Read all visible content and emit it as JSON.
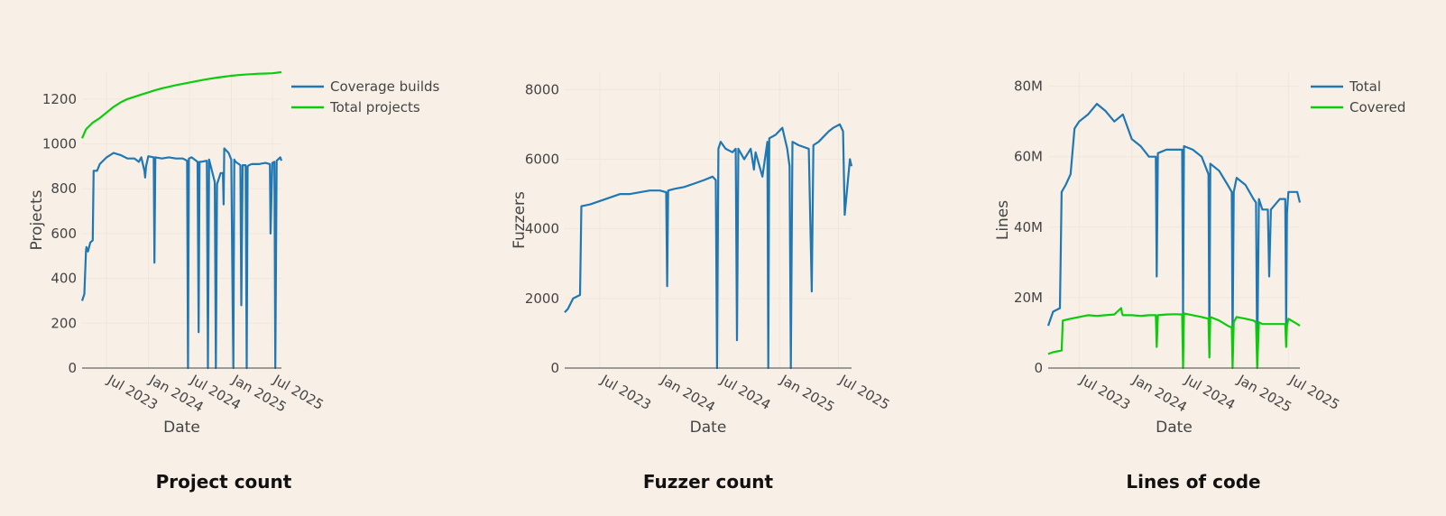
{
  "chart_data": [
    {
      "type": "line",
      "title": "Project count",
      "xlabel": "Date",
      "ylabel": "Projects",
      "x_range": [
        "2023-03-15",
        "2025-08-10"
      ],
      "ylim": [
        0,
        1320
      ],
      "yticks": [
        0,
        200,
        400,
        600,
        800,
        1000,
        1200
      ],
      "xticks": [
        "2023-07-01",
        "2024-01-01",
        "2024-07-01",
        "2025-01-01",
        "2025-07-01"
      ],
      "xtick_labels": [
        "Jul 2023",
        "Jan 2024",
        "Jul 2024",
        "Jan 2025",
        "Jul 2025"
      ],
      "grid": true,
      "legend": "right",
      "series": [
        {
          "name": "Coverage builds",
          "color": "#1f77b4",
          "x": [
            "2023-03-15",
            "2023-03-25",
            "2023-04-01",
            "2023-04-03",
            "2023-04-10",
            "2023-04-20",
            "2023-05-01",
            "2023-05-05",
            "2023-05-20",
            "2023-06-01",
            "2023-07-01",
            "2023-08-01",
            "2023-09-01",
            "2023-10-01",
            "2023-11-01",
            "2023-11-20",
            "2023-12-01",
            "2023-12-15",
            "2023-12-18",
            "2023-12-22",
            "2024-01-01",
            "2024-01-25",
            "2024-01-28",
            "2024-02-01",
            "2024-03-01",
            "2024-04-01",
            "2024-05-01",
            "2024-06-01",
            "2024-06-20",
            "2024-06-24",
            "2024-06-28",
            "2024-07-10",
            "2024-08-05",
            "2024-08-10",
            "2024-08-14",
            "2024-08-20",
            "2024-09-15",
            "2024-09-20",
            "2024-09-25",
            "2024-10-20",
            "2024-10-25",
            "2024-10-30",
            "2024-11-15",
            "2024-11-25",
            "2024-11-28",
            "2024-12-01",
            "2024-12-20",
            "2025-01-01",
            "2025-01-05",
            "2025-01-10",
            "2025-01-14",
            "2025-01-20",
            "2025-02-10",
            "2025-02-14",
            "2025-02-20",
            "2025-03-05",
            "2025-03-10",
            "2025-03-14",
            "2025-03-20",
            "2025-04-01",
            "2025-05-01",
            "2025-06-01",
            "2025-06-20",
            "2025-06-23",
            "2025-07-01",
            "2025-07-10",
            "2025-07-14",
            "2025-07-20",
            "2025-08-05",
            "2025-08-10"
          ],
          "values": [
            300,
            330,
            520,
            540,
            520,
            560,
            570,
            880,
            880,
            910,
            940,
            960,
            950,
            935,
            935,
            920,
            940,
            880,
            850,
            900,
            945,
            940,
            470,
            940,
            935,
            940,
            935,
            935,
            925,
            0,
            935,
            940,
            920,
            160,
            920,
            920,
            925,
            0,
            930,
            830,
            0,
            820,
            870,
            870,
            730,
            980,
            960,
            930,
            500,
            0,
            930,
            920,
            905,
            280,
            905,
            905,
            0,
            900,
            905,
            910,
            910,
            915,
            910,
            600,
            915,
            920,
            0,
            925,
            940,
            925
          ]
        },
        {
          "name": "Total projects",
          "color": "#0ccb0c",
          "x": [
            "2023-03-15",
            "2023-04-01",
            "2023-05-01",
            "2023-06-01",
            "2023-07-01",
            "2023-08-01",
            "2023-09-01",
            "2023-10-01",
            "2023-11-01",
            "2023-12-01",
            "2024-01-01",
            "2024-02-01",
            "2024-03-01",
            "2024-04-01",
            "2024-05-01",
            "2024-06-01",
            "2024-07-01",
            "2024-08-01",
            "2024-09-01",
            "2024-10-01",
            "2024-11-01",
            "2024-12-01",
            "2025-01-01",
            "2025-02-01",
            "2025-03-01",
            "2025-04-01",
            "2025-05-01",
            "2025-06-01",
            "2025-07-01",
            "2025-08-10"
          ],
          "values": [
            1025,
            1065,
            1095,
            1115,
            1140,
            1165,
            1185,
            1200,
            1210,
            1220,
            1230,
            1240,
            1248,
            1255,
            1262,
            1268,
            1274,
            1280,
            1286,
            1291,
            1296,
            1300,
            1304,
            1307,
            1309,
            1311,
            1313,
            1314,
            1315,
            1320
          ]
        }
      ]
    },
    {
      "type": "line",
      "title": "Fuzzer count",
      "xlabel": "Date",
      "ylabel": "Fuzzers",
      "x_range": [
        "2023-03-15",
        "2025-08-10"
      ],
      "ylim": [
        0,
        8500
      ],
      "yticks": [
        0,
        2000,
        4000,
        6000,
        8000
      ],
      "xticks": [
        "2023-07-01",
        "2024-01-01",
        "2024-07-01",
        "2025-01-01",
        "2025-07-01"
      ],
      "xtick_labels": [
        "Jul 2023",
        "Jan 2024",
        "Jul 2024",
        "Jan 2025",
        "Jul 2025"
      ],
      "grid": true,
      "legend": "none",
      "series": [
        {
          "name": "",
          "color": "#1f77b4",
          "x": [
            "2023-03-15",
            "2023-03-25",
            "2023-04-10",
            "2023-05-01",
            "2023-05-05",
            "2023-06-01",
            "2023-07-01",
            "2023-08-01",
            "2023-09-01",
            "2023-10-01",
            "2023-11-01",
            "2023-12-01",
            "2024-01-01",
            "2024-01-20",
            "2024-01-23",
            "2024-01-26",
            "2024-02-15",
            "2024-03-15",
            "2024-04-15",
            "2024-05-15",
            "2024-06-10",
            "2024-06-20",
            "2024-06-24",
            "2024-06-28",
            "2024-07-05",
            "2024-07-20",
            "2024-08-10",
            "2024-08-20",
            "2024-08-24",
            "2024-08-28",
            "2024-09-15",
            "2024-10-05",
            "2024-10-15",
            "2024-10-20",
            "2024-11-10",
            "2024-11-25",
            "2024-11-28",
            "2024-12-01",
            "2024-12-20",
            "2025-01-10",
            "2025-01-25",
            "2025-02-01",
            "2025-02-05",
            "2025-02-10",
            "2025-03-01",
            "2025-04-01",
            "2025-04-10",
            "2025-04-15",
            "2025-05-01",
            "2025-06-01",
            "2025-06-15",
            "2025-07-05",
            "2025-07-15",
            "2025-07-20",
            "2025-08-05",
            "2025-08-10"
          ],
          "values": [
            1600,
            1700,
            2000,
            2100,
            4650,
            4700,
            4800,
            4900,
            5000,
            5000,
            5050,
            5100,
            5100,
            5050,
            2350,
            5100,
            5150,
            5200,
            5300,
            5400,
            5500,
            5400,
            0,
            6300,
            6500,
            6300,
            6200,
            6300,
            800,
            6300,
            6000,
            6300,
            5700,
            6200,
            5500,
            6500,
            0,
            6600,
            6700,
            6900,
            6300,
            5800,
            0,
            6500,
            6400,
            6300,
            2200,
            6400,
            6500,
            6800,
            6900,
            7000,
            6800,
            4400,
            6000,
            5800
          ]
        }
      ]
    },
    {
      "type": "line",
      "title": "Lines of code",
      "xlabel": "Date",
      "ylabel": "Lines",
      "x_range": [
        "2023-03-15",
        "2025-08-10"
      ],
      "ylim": [
        0,
        84000000
      ],
      "yticks": [
        0,
        20000000,
        40000000,
        60000000,
        80000000
      ],
      "ytick_labels": [
        "0",
        "20M",
        "40M",
        "60M",
        "80M"
      ],
      "xticks": [
        "2023-07-01",
        "2024-01-01",
        "2024-07-01",
        "2025-01-01",
        "2025-07-01"
      ],
      "xtick_labels": [
        "Jul 2023",
        "Jan 2024",
        "Jul 2024",
        "Jan 2025",
        "Jul 2025"
      ],
      "grid": true,
      "legend": "top-right",
      "series": [
        {
          "name": "Total",
          "color": "#1f77b4",
          "x": [
            "2023-03-15",
            "2023-04-01",
            "2023-04-25",
            "2023-05-01",
            "2023-05-15",
            "2023-06-01",
            "2023-06-15",
            "2023-07-01",
            "2023-08-01",
            "2023-09-01",
            "2023-10-01",
            "2023-11-01",
            "2023-12-01",
            "2024-01-01",
            "2024-02-01",
            "2024-03-01",
            "2024-03-25",
            "2024-03-28",
            "2024-04-01",
            "2024-05-01",
            "2024-06-01",
            "2024-06-25",
            "2024-06-28",
            "2024-07-01",
            "2024-08-01",
            "2024-09-01",
            "2024-09-25",
            "2024-09-28",
            "2024-10-01",
            "2024-11-01",
            "2024-12-01",
            "2024-12-15",
            "2024-12-18",
            "2024-12-22",
            "2025-01-01",
            "2025-02-01",
            "2025-03-01",
            "2025-03-10",
            "2025-03-14",
            "2025-03-20",
            "2025-04-01",
            "2025-04-20",
            "2025-04-25",
            "2025-05-01",
            "2025-06-01",
            "2025-06-20",
            "2025-06-23",
            "2025-06-26",
            "2025-07-01",
            "2025-08-01",
            "2025-08-10"
          ],
          "values": [
            12000000,
            16000000,
            17000000,
            50000000,
            52000000,
            55000000,
            68000000,
            70000000,
            72000000,
            75000000,
            73000000,
            70000000,
            72000000,
            65000000,
            63000000,
            60000000,
            60000000,
            26000000,
            61000000,
            62000000,
            62000000,
            62000000,
            15000000,
            63000000,
            62000000,
            60000000,
            55000000,
            4000000,
            58000000,
            56000000,
            52000000,
            50000000,
            6000000,
            50000000,
            54000000,
            52000000,
            48000000,
            47000000,
            1000000,
            48000000,
            45000000,
            45000000,
            26000000,
            45000000,
            48000000,
            48000000,
            12000000,
            44000000,
            50000000,
            50000000,
            47000000
          ]
        },
        {
          "name": "Covered",
          "color": "#0ccb0c",
          "x": [
            "2023-03-15",
            "2023-04-01",
            "2023-05-01",
            "2023-05-05",
            "2023-06-01",
            "2023-07-01",
            "2023-08-01",
            "2023-09-01",
            "2023-10-01",
            "2023-11-01",
            "2023-11-25",
            "2023-11-28",
            "2023-12-01",
            "2024-01-01",
            "2024-02-01",
            "2024-03-01",
            "2024-03-25",
            "2024-03-28",
            "2024-04-01",
            "2024-05-01",
            "2024-06-01",
            "2024-06-25",
            "2024-06-28",
            "2024-07-01",
            "2024-08-01",
            "2024-09-01",
            "2024-09-25",
            "2024-09-28",
            "2024-10-01",
            "2024-11-01",
            "2024-12-01",
            "2024-12-15",
            "2024-12-18",
            "2024-12-22",
            "2025-01-01",
            "2025-02-01",
            "2025-03-01",
            "2025-03-10",
            "2025-03-14",
            "2025-03-20",
            "2025-04-01",
            "2025-05-01",
            "2025-06-01",
            "2025-06-20",
            "2025-06-23",
            "2025-06-26",
            "2025-07-01",
            "2025-08-01",
            "2025-08-10"
          ],
          "values": [
            4000000,
            4500000,
            5000000,
            13500000,
            14000000,
            14500000,
            15000000,
            14800000,
            15000000,
            15200000,
            17000000,
            15500000,
            15000000,
            15000000,
            14800000,
            15000000,
            15000000,
            6000000,
            15000000,
            15200000,
            15300000,
            15200000,
            0,
            15500000,
            15000000,
            14500000,
            14000000,
            3000000,
            14500000,
            13500000,
            12000000,
            11500000,
            0,
            13000000,
            14500000,
            14000000,
            13500000,
            13000000,
            0,
            13000000,
            12500000,
            12500000,
            12500000,
            12500000,
            6000000,
            12000000,
            14000000,
            12500000,
            12000000
          ]
        }
      ]
    }
  ]
}
